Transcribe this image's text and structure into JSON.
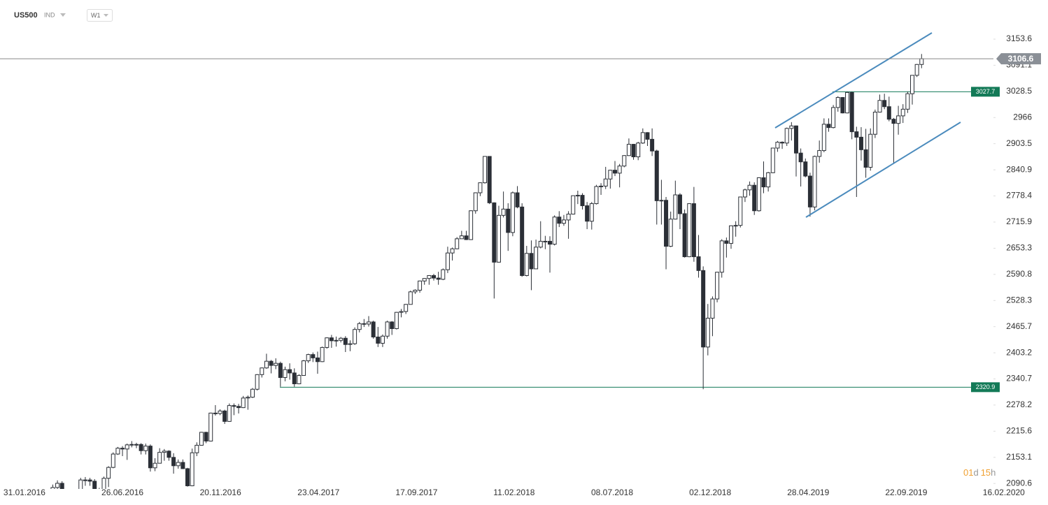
{
  "header": {
    "symbol": "US500",
    "market": "IND",
    "interval": "W1"
  },
  "countdown": [
    "01",
    "d",
    "15",
    "h"
  ],
  "chart_data": {
    "type": "candlestick",
    "xlim": [
      -1.36,
      221.2
    ],
    "ylim": [
      2077.5,
      3247.2
    ],
    "xticks": [
      {
        "value": 3.9,
        "label": "31.01.2016"
      },
      {
        "value": 25.0,
        "label": "26.06.2016"
      },
      {
        "value": 46.1,
        "label": "20.11.2016"
      },
      {
        "value": 67.2,
        "label": "23.04.2017"
      },
      {
        "value": 88.3,
        "label": "17.09.2017"
      },
      {
        "value": 109.3,
        "label": "11.02.2018"
      },
      {
        "value": 130.4,
        "label": "08.07.2018"
      },
      {
        "value": 151.5,
        "label": "02.12.2018"
      },
      {
        "value": 172.6,
        "label": "28.04.2019"
      },
      {
        "value": 193.7,
        "label": "22.09.2019"
      },
      {
        "value": 214.7,
        "label": "16.02.2020"
      }
    ],
    "yticks": [
      3153.6,
      3091.1,
      3028.5,
      2966.0,
      2903.5,
      2840.9,
      2778.4,
      2715.9,
      2653.3,
      2590.8,
      2528.3,
      2465.7,
      2403.2,
      2340.7,
      2278.2,
      2215.6,
      2153.1,
      2090.6
    ],
    "last_price": 3106.6,
    "levels": [
      3027.7,
      2320.9
    ],
    "level_color": "#137a57",
    "up_color": "#ffffff",
    "down_color": "#2b2f36",
    "x": [
      10,
      11,
      12,
      13,
      14,
      15,
      16,
      17,
      18,
      19,
      20,
      21,
      22,
      23,
      24,
      25,
      26,
      27,
      28,
      29,
      30,
      31,
      32,
      33,
      34,
      35,
      36,
      37,
      38,
      39,
      40,
      41,
      42,
      43,
      44,
      45,
      46,
      47,
      48,
      49,
      50,
      51,
      52,
      53,
      54,
      55,
      56,
      57,
      58,
      59,
      60,
      61,
      62,
      63,
      64,
      65,
      66,
      67,
      68,
      69,
      70,
      71,
      72,
      73,
      74,
      75,
      76,
      77,
      78,
      79,
      80,
      81,
      82,
      83,
      84,
      85,
      86,
      87,
      88,
      89,
      90,
      91,
      92,
      93,
      94,
      95,
      96,
      97,
      98,
      99,
      100,
      101,
      102,
      103,
      104,
      105,
      106,
      107,
      108,
      109,
      110,
      111,
      112,
      113,
      114,
      115,
      116,
      117,
      118,
      119,
      120,
      121,
      122,
      123,
      124,
      125,
      126,
      127,
      128,
      129,
      130,
      131,
      132,
      133,
      134,
      135,
      136,
      137,
      138,
      139,
      140,
      141,
      142,
      143,
      144,
      145,
      146,
      147,
      148,
      149,
      150,
      151,
      152,
      153,
      154,
      155,
      156,
      157,
      158,
      159,
      160,
      161,
      162,
      163,
      164,
      165,
      166,
      167,
      168,
      169,
      170,
      171,
      172,
      173,
      174,
      175,
      176,
      177,
      178,
      179,
      180,
      181,
      182,
      183,
      184,
      185,
      186,
      187,
      188,
      189,
      190,
      191,
      192,
      193,
      194,
      195,
      196,
      197
    ],
    "series": [
      {
        "open": [
          2047,
          2081,
          2091,
          2065,
          2057,
          2046,
          2052,
          2099,
          2099,
          2096,
          2071,
          2037,
          2103,
          2129,
          2161,
          2175,
          2173,
          2183,
          2184,
          2184,
          2169,
          2180,
          2128,
          2139,
          2165,
          2168,
          2153,
          2133,
          2141,
          2126,
          2085,
          2164,
          2182,
          2213,
          2192,
          2259,
          2258,
          2264,
          2239,
          2277,
          2275,
          2272,
          2295,
          2297,
          2316,
          2351,
          2367,
          2383,
          2373,
          2378,
          2344,
          2363,
          2355,
          2329,
          2349,
          2384,
          2399,
          2391,
          2382,
          2416,
          2439,
          2432,
          2433,
          2438,
          2423,
          2425,
          2459,
          2473,
          2472,
          2477,
          2441,
          2426,
          2443,
          2477,
          2461,
          2500,
          2502,
          2519,
          2549,
          2553,
          2575,
          2581,
          2588,
          2582,
          2579,
          2602,
          2642,
          2652,
          2676,
          2683,
          2674,
          2743,
          2786,
          2810,
          2873,
          2762,
          2620,
          2732,
          2747,
          2691,
          2786,
          2752,
          2588,
          2641,
          2604,
          2656,
          2670,
          2670,
          2663,
          2728,
          2713,
          2721,
          2735,
          2779,
          2780,
          2755,
          2718,
          2760,
          2801,
          2802,
          2819,
          2840,
          2833,
          2850,
          2875,
          2902,
          2872,
          2905,
          2930,
          2914,
          2886,
          2767,
          2768,
          2658,
          2723,
          2781,
          2736,
          2633,
          2760,
          2633,
          2600,
          2417,
          2486,
          2532,
          2596,
          2671,
          2665,
          2707,
          2708,
          2776,
          2793,
          2804,
          2743,
          2822,
          2800,
          2834,
          2893,
          2907,
          2905,
          2940,
          2946,
          2881,
          2860,
          2826,
          2752,
          2873,
          2887,
          2950,
          2942,
          2990,
          3014,
          2977,
          3026,
          2932,
          2919,
          2889,
          2847,
          2926,
          2979,
          3007,
          2992,
          2962,
          2952,
          2970,
          2986,
          3023,
          3067,
          3093
        ],
        "high": [
          2088,
          2098,
          2096,
          2070,
          2063,
          2058,
          2104,
          2106,
          2104,
          2101,
          2080,
          2107,
          2132,
          2165,
          2178,
          2180,
          2186,
          2192,
          2188,
          2187,
          2186,
          2184,
          2151,
          2175,
          2173,
          2170,
          2163,
          2148,
          2148,
          2128,
          2174,
          2189,
          2214,
          2214,
          2260,
          2278,
          2268,
          2267,
          2282,
          2282,
          2281,
          2300,
          2301,
          2319,
          2352,
          2368,
          2401,
          2386,
          2390,
          2382,
          2370,
          2378,
          2366,
          2352,
          2386,
          2401,
          2404,
          2406,
          2418,
          2440,
          2446,
          2442,
          2441,
          2443,
          2433,
          2464,
          2477,
          2484,
          2491,
          2480,
          2465,
          2447,
          2480,
          2479,
          2501,
          2508,
          2520,
          2552,
          2555,
          2576,
          2582,
          2589,
          2592,
          2597,
          2605,
          2657,
          2655,
          2680,
          2695,
          2695,
          2744,
          2787,
          2811,
          2873,
          2873,
          2763,
          2755,
          2789,
          2761,
          2789,
          2802,
          2761,
          2659,
          2672,
          2674,
          2718,
          2683,
          2682,
          2732,
          2742,
          2733,
          2742,
          2779,
          2791,
          2785,
          2764,
          2764,
          2805,
          2809,
          2848,
          2841,
          2862,
          2855,
          2876,
          2916,
          2903,
          2908,
          2940,
          2931,
          2940,
          2889,
          2817,
          2776,
          2741,
          2815,
          2785,
          2746,
          2761,
          2800,
          2685,
          2610,
          2520,
          2538,
          2597,
          2675,
          2679,
          2708,
          2718,
          2776,
          2796,
          2813,
          2811,
          2823,
          2861,
          2836,
          2893,
          2910,
          2909,
          2942,
          2955,
          2947,
          2892,
          2868,
          2834,
          2875,
          2911,
          2964,
          2964,
          2996,
          3017,
          3015,
          3028,
          3028,
          2944,
          2943,
          2939,
          2940,
          2985,
          3021,
          3023,
          3016,
          2965,
          2994,
          2998,
          3028,
          3067,
          3094,
          3118
        ],
        "low": [
          2039,
          2073,
          2062,
          2039,
          2039,
          2025,
          2050,
          2085,
          2085,
          2066,
          1992,
          2036,
          2082,
          2127,
          2159,
          2156,
          2147,
          2177,
          2175,
          2160,
          2160,
          2119,
          2120,
          2139,
          2145,
          2145,
          2114,
          2126,
          2126,
          2083,
          2084,
          2156,
          2181,
          2187,
          2191,
          2253,
          2254,
          2233,
          2238,
          2254,
          2258,
          2271,
          2267,
          2295,
          2313,
          2344,
          2365,
          2354,
          2364,
          2322,
          2335,
          2339,
          2322,
          2328,
          2349,
          2379,
          2381,
          2353,
          2381,
          2413,
          2415,
          2418,
          2428,
          2405,
          2407,
          2422,
          2452,
          2465,
          2466,
          2437,
          2417,
          2417,
          2437,
          2446,
          2459,
          2488,
          2496,
          2519,
          2544,
          2547,
          2566,
          2566,
          2576,
          2566,
          2577,
          2594,
          2624,
          2651,
          2676,
          2673,
          2673,
          2736,
          2778,
          2808,
          2759,
          2533,
          2619,
          2727,
          2647,
          2682,
          2749,
          2585,
          2586,
          2553,
          2604,
          2653,
          2651,
          2595,
          2660,
          2704,
          2707,
          2676,
          2734,
          2759,
          2746,
          2699,
          2698,
          2758,
          2781,
          2795,
          2796,
          2826,
          2799,
          2847,
          2874,
          2865,
          2864,
          2903,
          2898,
          2874,
          2710,
          2710,
          2603,
          2656,
          2722,
          2699,
          2631,
          2632,
          2621,
          2583,
          2316,
          2397,
          2443,
          2524,
          2583,
          2631,
          2652,
          2681,
          2703,
          2764,
          2779,
          2733,
          2741,
          2785,
          2789,
          2833,
          2884,
          2891,
          2898,
          2911,
          2825,
          2801,
          2823,
          2729,
          2744,
          2858,
          2883,
          2932,
          2940,
          2980,
          2976,
          2976,
          2914,
          2776,
          2863,
          2822,
          2839,
          2917,
          2978,
          2986,
          2957,
          2855,
          2925,
          2953,
          2977,
          2997,
          3063,
          3084
        ],
        "close": [
          2081,
          2091,
          2065,
          2057,
          2046,
          2052,
          2099,
          2099,
          2096,
          2071,
          2037,
          2103,
          2129,
          2161,
          2175,
          2173,
          2183,
          2184,
          2184,
          2169,
          2180,
          2128,
          2139,
          2165,
          2168,
          2153,
          2133,
          2141,
          2126,
          2085,
          2164,
          2182,
          2213,
          2192,
          2259,
          2258,
          2264,
          2239,
          2277,
          2275,
          2272,
          2295,
          2297,
          2316,
          2351,
          2367,
          2383,
          2373,
          2378,
          2344,
          2363,
          2355,
          2329,
          2349,
          2384,
          2399,
          2391,
          2382,
          2416,
          2439,
          2432,
          2433,
          2438,
          2423,
          2425,
          2459,
          2473,
          2472,
          2477,
          2441,
          2426,
          2443,
          2477,
          2461,
          2500,
          2502,
          2519,
          2549,
          2553,
          2575,
          2581,
          2588,
          2582,
          2579,
          2602,
          2642,
          2652,
          2676,
          2683,
          2674,
          2743,
          2786,
          2810,
          2873,
          2762,
          2620,
          2732,
          2747,
          2691,
          2786,
          2752,
          2588,
          2641,
          2604,
          2656,
          2670,
          2670,
          2663,
          2728,
          2713,
          2721,
          2735,
          2779,
          2780,
          2755,
          2718,
          2760,
          2801,
          2802,
          2819,
          2840,
          2833,
          2850,
          2875,
          2902,
          2872,
          2905,
          2930,
          2914,
          2886,
          2767,
          2768,
          2658,
          2723,
          2781,
          2736,
          2633,
          2760,
          2633,
          2600,
          2417,
          2486,
          2532,
          2596,
          2671,
          2665,
          2707,
          2708,
          2776,
          2793,
          2804,
          2743,
          2822,
          2800,
          2834,
          2893,
          2907,
          2905,
          2940,
          2946,
          2881,
          2860,
          2826,
          2752,
          2873,
          2887,
          2950,
          2942,
          2990,
          3014,
          2977,
          3026,
          2932,
          2919,
          2889,
          2847,
          2926,
          2979,
          3007,
          2992,
          2962,
          2952,
          2970,
          2986,
          3023,
          3067,
          3093,
          3106.6
        ]
      }
    ]
  }
}
